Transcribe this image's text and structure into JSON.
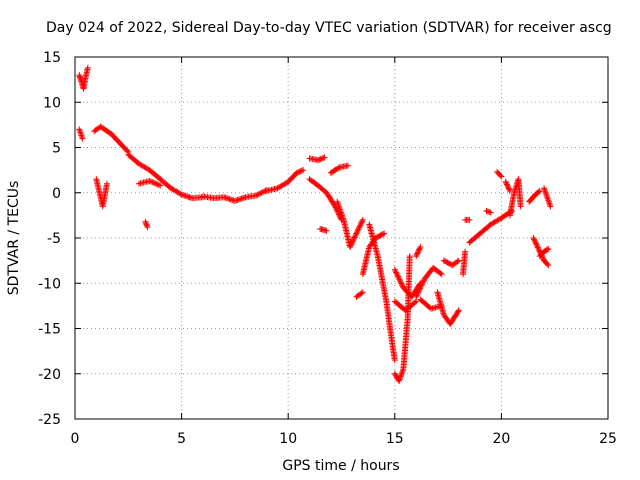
{
  "chart_data": {
    "type": "scatter",
    "title": "Day 024 of 2022, Sidereal Day-to-day VTEC variation (SDTVAR) for receiver ascg",
    "xlabel": "GPS time / hours",
    "ylabel": "SDTVAR / TECUs",
    "xlim": [
      0,
      25
    ],
    "ylim": [
      -25,
      15
    ],
    "xticks": [
      "0",
      "5",
      "10",
      "15",
      "20",
      "25"
    ],
    "yticks": [
      "15",
      "10",
      "5",
      "0",
      "-5",
      "-10",
      "-15",
      "-20",
      "-25"
    ],
    "grid": true,
    "marker": "+",
    "color": "#ff0000",
    "segments": [
      {
        "x0": 0.2,
        "x1": 0.6,
        "points": [
          [
            0.2,
            13.0
          ],
          [
            0.3,
            12.3
          ],
          [
            0.4,
            11.5
          ],
          [
            0.5,
            12.8
          ],
          [
            0.6,
            13.8
          ]
        ]
      },
      {
        "x0": 0.2,
        "x1": 0.35,
        "points": [
          [
            0.2,
            7.0
          ],
          [
            0.35,
            6.0
          ]
        ]
      },
      {
        "x0": 0.9,
        "x1": 2.5,
        "points": [
          [
            0.9,
            6.8
          ],
          [
            1.2,
            7.3
          ],
          [
            1.7,
            6.5
          ],
          [
            2.1,
            5.5
          ],
          [
            2.5,
            4.5
          ]
        ]
      },
      {
        "x0": 1.0,
        "x1": 1.5,
        "points": [
          [
            1.0,
            1.5
          ],
          [
            1.3,
            -1.5
          ],
          [
            1.5,
            1.0
          ]
        ]
      },
      {
        "x0": 2.5,
        "x1": 6.0,
        "points": [
          [
            2.5,
            4.2
          ],
          [
            3.0,
            3.2
          ],
          [
            3.5,
            2.5
          ],
          [
            4.0,
            1.5
          ],
          [
            4.5,
            0.5
          ],
          [
            5.0,
            -0.2
          ],
          [
            5.5,
            -0.6
          ],
          [
            6.0,
            -0.5
          ]
        ]
      },
      {
        "x0": 3.0,
        "x1": 4.0,
        "points": [
          [
            3.0,
            1.0
          ],
          [
            3.5,
            1.3
          ],
          [
            4.0,
            0.8
          ]
        ]
      },
      {
        "x0": 3.3,
        "x1": 3.4,
        "points": [
          [
            3.3,
            -3.2
          ],
          [
            3.4,
            -3.8
          ]
        ]
      },
      {
        "x0": 6.0,
        "x1": 9.0,
        "points": [
          [
            6.0,
            -0.4
          ],
          [
            6.5,
            -0.6
          ],
          [
            7.0,
            -0.5
          ],
          [
            7.5,
            -0.9
          ],
          [
            8.0,
            -0.5
          ],
          [
            8.5,
            -0.3
          ],
          [
            9.0,
            0.3
          ]
        ]
      },
      {
        "x0": 9.0,
        "x1": 10.7,
        "points": [
          [
            9.0,
            0.2
          ],
          [
            9.5,
            0.5
          ],
          [
            10.0,
            1.2
          ],
          [
            10.4,
            2.2
          ],
          [
            10.7,
            2.5
          ]
        ]
      },
      {
        "x0": 11.0,
        "x1": 11.7,
        "points": [
          [
            11.0,
            3.8
          ],
          [
            11.4,
            3.6
          ],
          [
            11.7,
            3.9
          ]
        ]
      },
      {
        "x0": 11.0,
        "x1": 12.5,
        "points": [
          [
            11.0,
            1.5
          ],
          [
            11.4,
            0.8
          ],
          [
            11.8,
            0.0
          ],
          [
            12.2,
            -1.5
          ],
          [
            12.5,
            -3.0
          ]
        ]
      },
      {
        "x0": 11.5,
        "x1": 11.8,
        "points": [
          [
            11.5,
            -4.0
          ],
          [
            11.8,
            -4.2
          ]
        ]
      },
      {
        "x0": 12.0,
        "x1": 12.8,
        "points": [
          [
            12.0,
            2.2
          ],
          [
            12.4,
            2.8
          ],
          [
            12.8,
            3.0
          ]
        ]
      },
      {
        "x0": 12.3,
        "x1": 13.5,
        "points": [
          [
            12.3,
            -1.0
          ],
          [
            12.6,
            -3.0
          ],
          [
            12.9,
            -6.0
          ],
          [
            13.2,
            -4.5
          ],
          [
            13.5,
            -3.0
          ]
        ]
      },
      {
        "x0": 13.2,
        "x1": 13.5,
        "points": [
          [
            13.2,
            -11.5
          ],
          [
            13.5,
            -11.0
          ]
        ]
      },
      {
        "x0": 13.5,
        "x1": 14.5,
        "points": [
          [
            13.5,
            -9.0
          ],
          [
            13.8,
            -6.0
          ],
          [
            14.1,
            -5.0
          ],
          [
            14.5,
            -4.5
          ]
        ]
      },
      {
        "x0": 13.8,
        "x1": 15.0,
        "points": [
          [
            13.8,
            -3.5
          ],
          [
            14.2,
            -7.0
          ],
          [
            14.6,
            -12.0
          ],
          [
            14.9,
            -17.0
          ],
          [
            15.0,
            -18.5
          ]
        ]
      },
      {
        "x0": 15.0,
        "x1": 15.7,
        "points": [
          [
            15.0,
            -20.0
          ],
          [
            15.2,
            -20.8
          ],
          [
            15.4,
            -19.5
          ],
          [
            15.6,
            -14.0
          ],
          [
            15.7,
            -7.0
          ]
        ]
      },
      {
        "x0": 15.0,
        "x1": 16.2,
        "points": [
          [
            15.0,
            -8.5
          ],
          [
            15.4,
            -10.5
          ],
          [
            15.8,
            -11.5
          ],
          [
            16.2,
            -10.0
          ]
        ]
      },
      {
        "x0": 15.0,
        "x1": 16.0,
        "points": [
          [
            15.0,
            -12.0
          ],
          [
            15.5,
            -13.0
          ],
          [
            16.0,
            -12.0
          ]
        ]
      },
      {
        "x0": 16.0,
        "x1": 17.2,
        "points": [
          [
            16.0,
            -11.5
          ],
          [
            16.4,
            -9.5
          ],
          [
            16.8,
            -8.3
          ],
          [
            17.2,
            -9.0
          ]
        ]
      },
      {
        "x0": 16.0,
        "x1": 16.2,
        "points": [
          [
            16.0,
            -7.0
          ],
          [
            16.2,
            -6.0
          ]
        ]
      },
      {
        "x0": 16.2,
        "x1": 17.2,
        "points": [
          [
            16.2,
            -11.8
          ],
          [
            16.7,
            -12.8
          ],
          [
            17.2,
            -12.5
          ]
        ]
      },
      {
        "x0": 17.0,
        "x1": 18.0,
        "points": [
          [
            17.0,
            -11.0
          ],
          [
            17.3,
            -13.5
          ],
          [
            17.6,
            -14.5
          ],
          [
            18.0,
            -13.0
          ]
        ]
      },
      {
        "x0": 17.3,
        "x1": 18.0,
        "points": [
          [
            17.3,
            -7.5
          ],
          [
            17.7,
            -8.0
          ],
          [
            18.0,
            -7.5
          ]
        ]
      },
      {
        "x0": 18.2,
        "x1": 18.3,
        "points": [
          [
            18.2,
            -9.0
          ],
          [
            18.3,
            -6.5
          ]
        ]
      },
      {
        "x0": 18.3,
        "x1": 18.5,
        "points": [
          [
            18.3,
            -3.0
          ],
          [
            18.5,
            -3.0
          ]
        ]
      },
      {
        "x0": 18.5,
        "x1": 20.5,
        "points": [
          [
            18.5,
            -5.5
          ],
          [
            19.0,
            -4.5
          ],
          [
            19.5,
            -3.5
          ],
          [
            20.0,
            -2.8
          ],
          [
            20.5,
            -2.0
          ]
        ]
      },
      {
        "x0": 19.3,
        "x1": 19.5,
        "points": [
          [
            19.3,
            -2.0
          ],
          [
            19.5,
            -2.2
          ]
        ]
      },
      {
        "x0": 19.8,
        "x1": 20.0,
        "points": [
          [
            19.8,
            2.3
          ],
          [
            20.0,
            1.8
          ]
        ]
      },
      {
        "x0": 20.2,
        "x1": 20.4,
        "points": [
          [
            20.2,
            1.2
          ],
          [
            20.4,
            0.2
          ]
        ]
      },
      {
        "x0": 20.4,
        "x1": 20.9,
        "points": [
          [
            20.4,
            -2.5
          ],
          [
            20.6,
            0.0
          ],
          [
            20.8,
            1.5
          ],
          [
            20.9,
            -1.5
          ]
        ]
      },
      {
        "x0": 21.3,
        "x1": 21.8,
        "points": [
          [
            21.3,
            -1.0
          ],
          [
            21.6,
            -0.2
          ],
          [
            21.8,
            0.2
          ]
        ]
      },
      {
        "x0": 21.5,
        "x1": 22.2,
        "points": [
          [
            21.5,
            -5.0
          ],
          [
            21.8,
            -6.5
          ],
          [
            22.0,
            -7.5
          ],
          [
            22.2,
            -8.0
          ]
        ]
      },
      {
        "x0": 21.8,
        "x1": 22.2,
        "points": [
          [
            21.8,
            -7.0
          ],
          [
            22.0,
            -6.5
          ],
          [
            22.2,
            -6.2
          ]
        ]
      },
      {
        "x0": 22.0,
        "x1": 22.3,
        "points": [
          [
            22.0,
            0.5
          ],
          [
            22.15,
            -0.5
          ],
          [
            22.3,
            -1.5
          ]
        ]
      }
    ]
  }
}
